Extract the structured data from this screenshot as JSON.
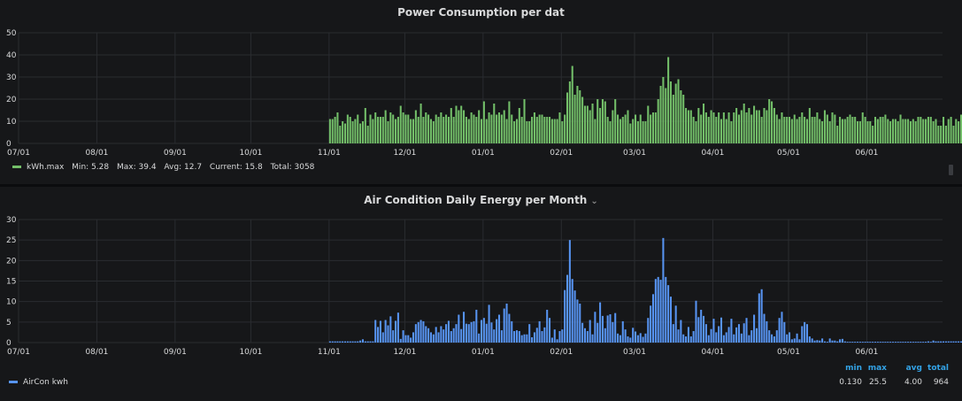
{
  "colors": {
    "bg": "#161719",
    "grid": "#2a2c30",
    "green": "#73bf69",
    "blue": "#5794f2",
    "stat_header": "#33a2e5"
  },
  "panel1": {
    "title": "Power Consumption per dat",
    "legend": {
      "name": "kWh.max",
      "min_label": "Min:",
      "min": "5.28",
      "max_label": "Max:",
      "max": "39.4",
      "avg_label": "Avg:",
      "avg": "12.7",
      "current_label": "Current:",
      "current": "15.8",
      "total_label": "Total:",
      "total": "3058"
    }
  },
  "panel2": {
    "title": "Air Condition Daily Energy per Month",
    "title_icon": "chevron-down-icon",
    "legend": {
      "name": "AirCon kwh"
    },
    "stats": {
      "headers": [
        "min",
        "max",
        "avg",
        "total"
      ],
      "values": [
        "0.130",
        "25.5",
        "4.00",
        "964"
      ]
    }
  },
  "chart_data": [
    {
      "type": "bar",
      "title": "Power Consumption per dat",
      "x_tick_labels": [
        "07/01",
        "08/01",
        "09/01",
        "10/01",
        "11/01",
        "12/01",
        "01/01",
        "02/01",
        "03/01",
        "04/01",
        "05/01",
        "06/01"
      ],
      "x_start": "2019-07-01",
      "x_end": "2020-06-30",
      "ylim": [
        0,
        50
      ],
      "y_ticks": [
        0,
        10,
        20,
        30,
        40,
        50
      ],
      "grid": true,
      "legend_position": "bottom-left",
      "series": [
        {
          "name": "kWh.max",
          "color": "#73bf69",
          "start_date": "2019-11-01",
          "values": [
            11,
            11,
            12,
            14,
            8,
            10,
            9,
            13,
            12,
            10,
            11,
            13,
            9,
            10,
            16,
            8,
            13,
            11,
            14,
            12,
            12,
            12,
            15,
            10,
            14,
            13,
            11,
            12,
            17,
            14,
            13,
            13,
            11,
            11,
            15,
            12,
            18,
            12,
            14,
            13,
            11,
            10,
            13,
            12,
            14,
            12,
            13,
            12,
            16,
            12,
            17,
            15,
            17,
            15,
            12,
            11,
            14,
            13,
            12,
            15,
            11,
            19,
            11,
            14,
            13,
            18,
            13,
            14,
            13,
            15,
            11,
            19,
            13,
            10,
            11,
            16,
            12,
            20,
            10,
            10,
            12,
            14,
            12,
            13,
            13,
            12,
            12,
            12,
            11,
            11,
            11,
            14,
            10,
            13,
            23,
            28,
            35,
            22,
            26,
            24,
            21,
            17,
            17,
            15,
            18,
            11,
            20,
            16,
            20,
            19,
            12,
            10,
            15,
            20,
            13,
            11,
            12,
            13,
            15,
            9,
            11,
            13,
            10,
            13,
            10,
            10,
            17,
            13,
            14,
            14,
            20,
            26,
            30,
            25,
            39,
            28,
            22,
            27,
            29,
            24,
            22,
            16,
            15,
            15,
            12,
            10,
            16,
            13,
            18,
            14,
            12,
            15,
            14,
            12,
            14,
            11,
            14,
            11,
            14,
            10,
            14,
            16,
            13,
            15,
            18,
            14,
            16,
            13,
            17,
            15,
            15,
            12,
            16,
            15,
            20,
            19,
            16,
            13,
            11,
            14,
            12,
            12,
            12,
            11,
            13,
            11,
            12,
            14,
            12,
            11,
            16,
            12,
            12,
            14,
            11,
            10,
            15,
            13,
            10,
            14,
            13,
            8,
            12,
            11,
            11,
            12,
            13,
            12,
            12,
            10,
            10,
            14,
            12,
            10,
            10,
            8,
            12,
            11,
            12,
            12,
            13,
            11,
            10,
            11,
            11,
            10,
            13,
            11,
            11,
            11,
            10,
            11,
            10,
            12,
            12,
            11,
            11,
            12,
            12,
            10,
            11,
            8,
            8,
            12,
            8,
            11,
            12,
            8,
            11,
            10,
            13,
            11,
            10,
            9,
            9,
            15,
            11,
            9,
            12,
            8,
            8,
            10,
            14,
            10,
            10,
            12,
            11,
            12,
            9,
            10,
            18,
            17,
            20,
            17,
            19,
            16
          ]
        }
      ]
    },
    {
      "type": "bar",
      "title": "Air Condition Daily Energy per Month",
      "x_tick_labels": [
        "07/01",
        "08/01",
        "09/01",
        "10/01",
        "11/01",
        "12/01",
        "01/01",
        "02/01",
        "03/01",
        "04/01",
        "05/01",
        "06/01"
      ],
      "x_start": "2019-07-01",
      "x_end": "2020-06-30",
      "ylim": [
        0,
        30
      ],
      "y_ticks": [
        0,
        5,
        10,
        15,
        20,
        25,
        30
      ],
      "grid": true,
      "legend_position": "bottom-left",
      "series": [
        {
          "name": "AirCon kwh",
          "color": "#5794f2",
          "start_date": "2019-11-01",
          "values": [
            0.3,
            0.3,
            0.3,
            0.3,
            0.3,
            0.3,
            0.3,
            0.3,
            0.3,
            0.3,
            0.3,
            0.3,
            0.5,
            0.8,
            0.3,
            0.3,
            0.3,
            0.3,
            5.5,
            3.8,
            5.3,
            2.5,
            5.5,
            4.2,
            6.4,
            3.0,
            5.3,
            7.3,
            0.9,
            3.0,
            1.8,
            1.8,
            1.2,
            2.5,
            4.5,
            5.0,
            5.5,
            5.2,
            4.0,
            3.5,
            2.5,
            2.0,
            3.8,
            2.5,
            4.0,
            3.2,
            4.5,
            5.3,
            2.8,
            3.5,
            4.5,
            6.8,
            3.3,
            7.5,
            4.6,
            4.5,
            5.0,
            5.2,
            8.0,
            2.2,
            5.5,
            6.0,
            4.6,
            9.2,
            4.9,
            3.2,
            5.7,
            6.8,
            3.0,
            8.3,
            9.5,
            7.0,
            5.2,
            2.8,
            3.0,
            2.8,
            1.8,
            2.0,
            2.0,
            4.5,
            1.3,
            2.5,
            3.6,
            5.2,
            2.8,
            3.7,
            8.0,
            6.0,
            1.2,
            3.2,
            0.8,
            2.8,
            3.2,
            12.8,
            16.5,
            25.0,
            15.5,
            12.7,
            10.5,
            9.5,
            4.8,
            3.5,
            2.8,
            5.5,
            2.0,
            7.5,
            4.8,
            9.8,
            6.5,
            3.5,
            6.6,
            6.9,
            5.0,
            7.2,
            2.2,
            1.8,
            5.2,
            3.2,
            1.5,
            1.2,
            3.6,
            2.7,
            1.8,
            2.3,
            1.4,
            2.2,
            6.0,
            9.0,
            11.8,
            15.5,
            16.0,
            15.3,
            25.5,
            16.0,
            14.0,
            11.2,
            4.5,
            9.0,
            3.2,
            5.5,
            2.0,
            1.5,
            3.8,
            1.5,
            2.8,
            10.2,
            6.2,
            8.0,
            6.5,
            4.5,
            1.8,
            3.3,
            5.8,
            2.5,
            4.0,
            6.1,
            1.8,
            2.5,
            3.8,
            5.8,
            2.0,
            3.7,
            4.5,
            2.2,
            4.7,
            6.0,
            1.8,
            3.0,
            6.8,
            3.5,
            12.0,
            13.0,
            7.0,
            5.2,
            3.0,
            2.0,
            1.5,
            3.0,
            6.0,
            7.5,
            5.0,
            2.0,
            2.5,
            0.8,
            1.0,
            2.2,
            0.8,
            4.0,
            5.0,
            4.5,
            1.5,
            1.0,
            0.5,
            0.6,
            0.5,
            1.0,
            0.3,
            0.2,
            1.0,
            0.5,
            0.5,
            0.3,
            0.8,
            0.9,
            0.3,
            0.2,
            0.2,
            0.2,
            0.2,
            0.2,
            0.2,
            0.2,
            0.2,
            0.2,
            0.2,
            0.2,
            0.2,
            0.2,
            0.2,
            0.2,
            0.2,
            0.2,
            0.2,
            0.2,
            0.2,
            0.2,
            0.2,
            0.2,
            0.2,
            0.2,
            0.2,
            0.2,
            0.2,
            0.2,
            0.2,
            0.2,
            0.2,
            0.3,
            0.2,
            0.5,
            0.3,
            0.3,
            0.3,
            0.3,
            0.3,
            0.3,
            0.3,
            0.3,
            0.3,
            0.3,
            0.3,
            0.3,
            0.3,
            0.3,
            0.3,
            0.3,
            0.3,
            0.3,
            0.3,
            0.3,
            0.3,
            0.3,
            0.3,
            0.3,
            0.3,
            0.3,
            0.3,
            0.3,
            0.5,
            0.5,
            1.0,
            3.0,
            4.8,
            7.0,
            8.0,
            12.3,
            10.5,
            8.5,
            6.5
          ]
        }
      ]
    }
  ]
}
